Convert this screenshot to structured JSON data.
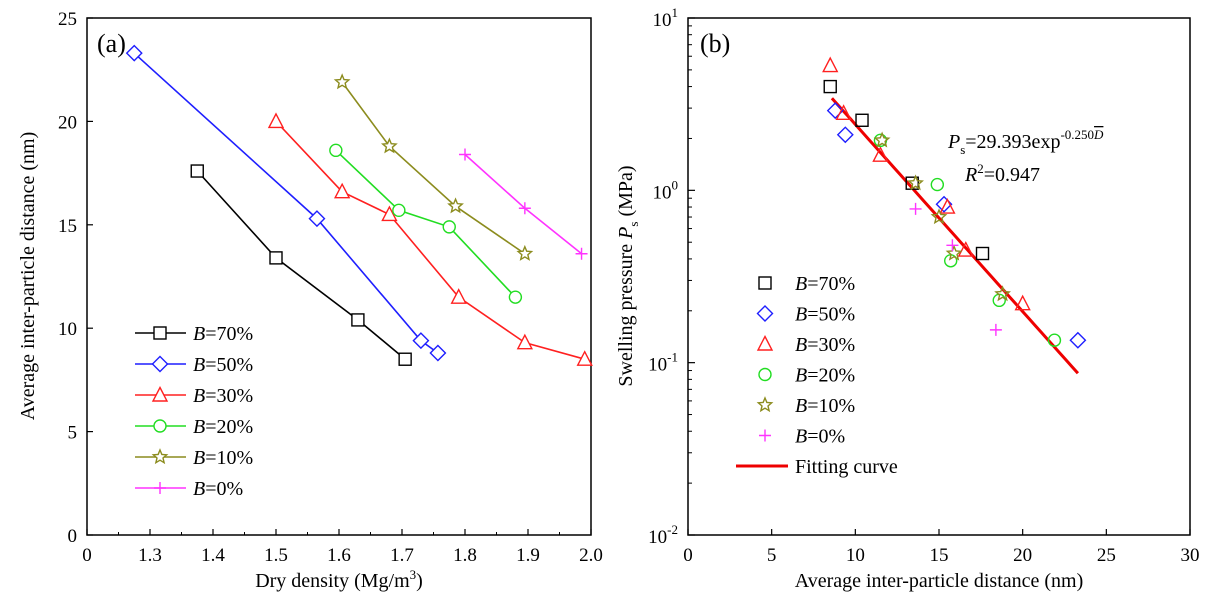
{
  "chart_data": [
    {
      "type": "line",
      "panel_label": "(a)",
      "xlabel": "Dry density (Mg/m",
      "xlabel_sup": "3",
      "xlabel_end": ")",
      "ylabel": "Average inter-particle distance (nm)",
      "xlim": [
        1.2,
        2.0
      ],
      "ylim": [
        0,
        25
      ],
      "x_ticks": [
        "0",
        "1.3",
        "1.4",
        "1.5",
        "1.6",
        "1.7",
        "1.8",
        "1.9",
        "2.0"
      ],
      "y_ticks": [
        0,
        5,
        10,
        15,
        20,
        25
      ],
      "legend_position": "bottom-left",
      "series": [
        {
          "name": "B=70%",
          "var": "B",
          "rest": "=70%",
          "marker": "square",
          "color": "#000000",
          "x": [
            1.375,
            1.5,
            1.63,
            1.705
          ],
          "y": [
            17.6,
            13.4,
            10.4,
            8.5
          ]
        },
        {
          "name": "B=50%",
          "var": "B",
          "rest": "=50%",
          "marker": "diamond",
          "color": "#1f1fff",
          "x": [
            1.275,
            1.565,
            1.73,
            1.757
          ],
          "y": [
            23.3,
            15.3,
            9.4,
            8.8
          ]
        },
        {
          "name": "B=30%",
          "var": "B",
          "rest": "=30%",
          "marker": "triangle",
          "color": "#ff2020",
          "x": [
            1.5,
            1.605,
            1.68,
            1.79,
            1.895,
            1.99
          ],
          "y": [
            20.0,
            16.6,
            15.5,
            11.5,
            9.3,
            8.5
          ]
        },
        {
          "name": "B=20%",
          "var": "B",
          "rest": "=20%",
          "marker": "circle",
          "color": "#22dd22",
          "x": [
            1.595,
            1.695,
            1.775,
            1.88
          ],
          "y": [
            18.6,
            15.7,
            14.9,
            11.5
          ]
        },
        {
          "name": "B=10%",
          "var": "B",
          "rest": "=10%",
          "marker": "star",
          "color": "#8c8c1e",
          "x": [
            1.605,
            1.68,
            1.785,
            1.895
          ],
          "y": [
            21.9,
            18.8,
            15.9,
            13.6
          ]
        },
        {
          "name": "B=0%",
          "var": "B",
          "rest": "=0%",
          "marker": "plus",
          "color": "#ff33ff",
          "x": [
            1.8,
            1.895,
            1.985
          ],
          "y": [
            18.4,
            15.8,
            13.6
          ]
        }
      ]
    },
    {
      "type": "scatter",
      "panel_label": "(b)",
      "xlabel": "Average inter-particle distance  (nm)",
      "ylabel": "Swelling pressure ",
      "ylabel_var": "P",
      "ylabel_sub": "s",
      "ylabel_unit": "  (MPa)",
      "xlim": [
        0,
        30
      ],
      "ylim": [
        0.01,
        10
      ],
      "yscale": "log",
      "x_ticks": [
        0,
        5,
        10,
        15,
        20,
        25,
        30
      ],
      "y_ticks": [
        {
          "base": "10",
          "exp": "-2"
        },
        {
          "base": "10",
          "exp": "-1"
        },
        {
          "base": "10",
          "exp": "0"
        },
        {
          "base": "10",
          "exp": "1"
        }
      ],
      "legend_position": "bottom-left",
      "equation": {
        "var": "P",
        "sub": "s",
        "text": "=29.393exp",
        "exp": "-0.250",
        "exp_var": "D"
      },
      "r2": {
        "var": "R",
        "sup": "2",
        "text": "=0.947"
      },
      "fit": {
        "name": "Fitting curve",
        "color": "#ee0000",
        "a": 29.393,
        "b": -0.25,
        "x_range": [
          8.6,
          23.3
        ]
      },
      "series": [
        {
          "name": "B=70%",
          "var": "B",
          "rest": "=70%",
          "marker": "square",
          "color": "#000000",
          "x": [
            8.5,
            10.4,
            13.4,
            17.6
          ],
          "y": [
            4.0,
            2.55,
            1.1,
            0.43
          ]
        },
        {
          "name": "B=50%",
          "var": "B",
          "rest": "=50%",
          "marker": "diamond",
          "color": "#1f1fff",
          "x": [
            8.8,
            9.4,
            15.3,
            23.3
          ],
          "y": [
            2.9,
            2.1,
            0.83,
            0.135
          ]
        },
        {
          "name": "B=30%",
          "var": "B",
          "rest": "=30%",
          "marker": "triangle",
          "color": "#ff2020",
          "x": [
            8.5,
            9.3,
            11.5,
            15.5,
            16.6,
            20.0
          ],
          "y": [
            5.3,
            2.8,
            1.6,
            0.8,
            0.45,
            0.22
          ]
        },
        {
          "name": "B=20%",
          "var": "B",
          "rest": "=20%",
          "marker": "circle",
          "color": "#22dd22",
          "x": [
            11.5,
            14.9,
            15.7,
            18.6,
            21.9
          ],
          "y": [
            1.95,
            1.08,
            0.39,
            0.23,
            0.135
          ]
        },
        {
          "name": "B=10%",
          "var": "B",
          "rest": "=10%",
          "marker": "star",
          "color": "#8c8c1e",
          "x": [
            11.6,
            13.6,
            15.9,
            18.8,
            15.0
          ],
          "y": [
            1.95,
            1.1,
            0.43,
            0.25,
            0.7
          ]
        },
        {
          "name": "B=0%",
          "var": "B",
          "rest": "=0%",
          "marker": "plus",
          "color": "#ff33ff",
          "x": [
            13.6,
            15.8,
            18.4
          ],
          "y": [
            0.78,
            0.48,
            0.155
          ]
        }
      ]
    }
  ]
}
